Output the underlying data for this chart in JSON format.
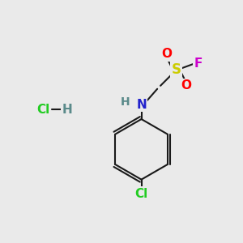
{
  "background_color": "#eaeaea",
  "bond_color": "#1a1a1a",
  "bond_width": 1.5,
  "figsize": [
    3.0,
    3.0
  ],
  "dpi": 100,
  "colors": {
    "S": "#cccc00",
    "O": "#ff0000",
    "F": "#cc00cc",
    "N": "#2222cc",
    "H": "#5a8a8a",
    "Cl": "#22cc22",
    "C": "#1a1a1a"
  },
  "fontsize": 11
}
